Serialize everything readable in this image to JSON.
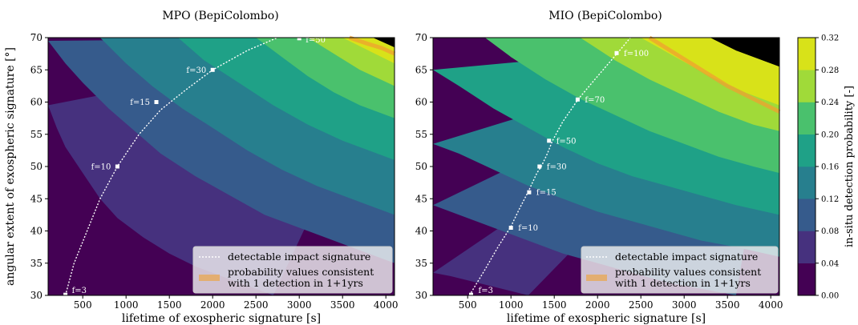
{
  "chart_data": [
    {
      "type": "contour",
      "title": "MPO (BepiColombo)",
      "xlabel": "lifetime of exospheric signature [s]",
      "ylabel": "angular extent of exospheric signature [°]",
      "xlim": [
        100,
        4100
      ],
      "ylim": [
        30,
        70
      ],
      "xticks": [
        "500",
        "1000",
        "1500",
        "2000",
        "2500",
        "3000",
        "3500",
        "4000"
      ],
      "yticks": [
        "30",
        "35",
        "40",
        "45",
        "50",
        "55",
        "60",
        "65",
        "70"
      ],
      "boundaries": [
        [
          [
            100,
            59.5
          ],
          [
            200,
            56
          ],
          [
            300,
            53
          ],
          [
            500,
            49
          ],
          [
            700,
            45
          ],
          [
            900,
            42
          ],
          [
            1200,
            39
          ],
          [
            1500,
            36.5
          ],
          [
            1800,
            34.5
          ],
          [
            2100,
            33
          ],
          [
            2400,
            31.5
          ],
          [
            2700,
            30
          ]
        ],
        [
          [
            100,
            69.5
          ],
          [
            300,
            66
          ],
          [
            500,
            63
          ],
          [
            800,
            59
          ],
          [
            1100,
            55.5
          ],
          [
            1400,
            52
          ],
          [
            1800,
            48.5
          ],
          [
            2200,
            45.5
          ],
          [
            2600,
            42.5
          ],
          [
            3000,
            40.5
          ],
          [
            3400,
            38.5
          ],
          [
            3800,
            36.5
          ],
          [
            4100,
            35
          ]
        ],
        [
          [
            700,
            70
          ],
          [
            1000,
            66
          ],
          [
            1300,
            62.5
          ],
          [
            1650,
            59
          ],
          [
            2000,
            56
          ],
          [
            2400,
            52.5
          ],
          [
            2800,
            49.5
          ],
          [
            3200,
            47
          ],
          [
            3600,
            45
          ],
          [
            4100,
            42.5
          ]
        ],
        [
          [
            1600,
            70
          ],
          [
            1900,
            66.5
          ],
          [
            2300,
            63
          ],
          [
            2700,
            59.5
          ],
          [
            3100,
            56.5
          ],
          [
            3500,
            54
          ],
          [
            4100,
            51
          ]
        ],
        [
          [
            2500,
            70
          ],
          [
            2800,
            67
          ],
          [
            3100,
            64
          ],
          [
            3400,
            61.5
          ],
          [
            3700,
            59.5
          ],
          [
            4100,
            57.5
          ]
        ],
        [
          [
            3100,
            70
          ],
          [
            3400,
            67.5
          ],
          [
            3700,
            65
          ],
          [
            4100,
            62.5
          ]
        ],
        [
          [
            3500,
            70
          ],
          [
            3800,
            68
          ],
          [
            4100,
            66
          ]
        ],
        [
          [
            3850,
            70
          ],
          [
            4100,
            68.5
          ]
        ]
      ],
      "consistent_band": [
        [
          3580,
          70
        ],
        [
          3800,
          69
        ],
        [
          3950,
          68.4
        ],
        [
          4100,
          67.5
        ]
      ],
      "detectable_curve": [
        [
          300,
          30
        ],
        [
          400,
          35
        ],
        [
          550,
          40
        ],
        [
          700,
          45
        ],
        [
          900,
          50
        ],
        [
          1150,
          55
        ],
        [
          1400,
          58.8
        ],
        [
          1700,
          62
        ],
        [
          2000,
          65
        ],
        [
          2400,
          68
        ],
        [
          2750,
          70
        ]
      ],
      "markers": [
        {
          "label": "f=3",
          "x": 300,
          "y": 30.1
        },
        {
          "label": "f=10",
          "x": 900,
          "y": 50
        },
        {
          "label": "f=15",
          "x": 1350,
          "y": 60
        },
        {
          "label": "f=30",
          "x": 2000,
          "y": 65
        },
        {
          "label": "f=50",
          "x": 3000,
          "y": 69.9
        }
      ]
    },
    {
      "type": "contour",
      "title": "MIO (BepiColombo)",
      "xlabel": "lifetime of exospheric signature [s]",
      "ylabel": "",
      "xlim": [
        100,
        4100
      ],
      "ylim": [
        30,
        70
      ],
      "xticks": [
        "500",
        "1000",
        "1500",
        "2000",
        "2500",
        "3000",
        "3500",
        "4000"
      ],
      "yticks": [
        "30",
        "35",
        "40",
        "45",
        "50",
        "55",
        "60",
        "65",
        "70"
      ],
      "boundaries": [
        [
          [
            100,
            33.5
          ],
          [
            300,
            33
          ],
          [
            600,
            32
          ],
          [
            900,
            31
          ],
          [
            1200,
            30
          ]
        ],
        [
          [
            100,
            44
          ],
          [
            400,
            42.5
          ],
          [
            800,
            40.5
          ],
          [
            1200,
            38.5
          ],
          [
            1600,
            36.5
          ],
          [
            2000,
            35
          ],
          [
            2400,
            33.5
          ],
          [
            2800,
            32
          ],
          [
            3200,
            31
          ],
          [
            3600,
            30
          ]
        ],
        [
          [
            100,
            53.5
          ],
          [
            400,
            52
          ],
          [
            800,
            49.5
          ],
          [
            1200,
            47
          ],
          [
            1600,
            45
          ],
          [
            2000,
            43
          ],
          [
            2400,
            41.5
          ],
          [
            2800,
            40
          ],
          [
            3200,
            38.5
          ],
          [
            3600,
            37.5
          ],
          [
            4100,
            36
          ]
        ],
        [
          [
            100,
            65
          ],
          [
            400,
            62.5
          ],
          [
            800,
            59
          ],
          [
            1200,
            56
          ],
          [
            1600,
            53
          ],
          [
            2000,
            50.5
          ],
          [
            2400,
            48.5
          ],
          [
            2800,
            47
          ],
          [
            3200,
            45.5
          ],
          [
            3600,
            44
          ],
          [
            4100,
            42.5
          ]
        ],
        [
          [
            700,
            70
          ],
          [
            1000,
            67
          ],
          [
            1400,
            63.5
          ],
          [
            1800,
            60.5
          ],
          [
            2200,
            58
          ],
          [
            2600,
            55.5
          ],
          [
            3000,
            53.5
          ],
          [
            3400,
            51.5
          ],
          [
            3800,
            50
          ],
          [
            4100,
            49
          ]
        ],
        [
          [
            1800,
            70
          ],
          [
            2200,
            66.5
          ],
          [
            2600,
            63.5
          ],
          [
            3000,
            61
          ],
          [
            3400,
            58.5
          ],
          [
            3800,
            56.5
          ],
          [
            4100,
            55.5
          ]
        ],
        [
          [
            2500,
            70
          ],
          [
            2900,
            67
          ],
          [
            3300,
            64
          ],
          [
            3700,
            61.5
          ],
          [
            4100,
            59.5
          ]
        ],
        [
          [
            3300,
            70
          ],
          [
            3600,
            68
          ],
          [
            4100,
            65.5
          ]
        ]
      ],
      "consistent_band": [
        [
          2600,
          70
        ],
        [
          2900,
          67.5
        ],
        [
          3200,
          65
        ],
        [
          3500,
          62.5
        ],
        [
          3800,
          60.5
        ],
        [
          4100,
          58.5
        ]
      ],
      "detectable_curve": [
        [
          520,
          30
        ],
        [
          700,
          34
        ],
        [
          850,
          37.5
        ],
        [
          1000,
          40.7
        ],
        [
          1100,
          43.5
        ],
        [
          1200,
          46.1
        ],
        [
          1300,
          49
        ],
        [
          1350,
          50
        ],
        [
          1420,
          52
        ],
        [
          1480,
          54
        ],
        [
          1600,
          57
        ],
        [
          1780,
          60.5
        ],
        [
          2000,
          64
        ],
        [
          2230,
          67.6
        ],
        [
          2380,
          70
        ]
      ],
      "markers": [
        {
          "label": "f=3",
          "x": 540,
          "y": 30.1
        },
        {
          "label": "f=10",
          "x": 1000,
          "y": 40.5
        },
        {
          "label": "f=15",
          "x": 1210,
          "y": 46
        },
        {
          "label": "f=30",
          "x": 1330,
          "y": 50
        },
        {
          "label": "f=50",
          "x": 1440,
          "y": 54
        },
        {
          "label": "f=70",
          "x": 1770,
          "y": 60.4
        },
        {
          "label": "f=100",
          "x": 2220,
          "y": 67.6
        }
      ]
    }
  ],
  "colors": [
    "#440154",
    "#46317e",
    "#365b8c",
    "#277f8e",
    "#1fa187",
    "#4ac16d",
    "#a0da39",
    "#d8e219"
  ],
  "band_color": "#f0a030",
  "legend": {
    "line_label": "detectable impact signature",
    "band_label_line1": "probability values consistent",
    "band_label_line2": "with 1 detection in 1+1yrs"
  },
  "colorbar": {
    "label": "in-situ detection probability [-]",
    "ticks": [
      "0.00",
      "0.04",
      "0.08",
      "0.12",
      "0.16",
      "0.20",
      "0.24",
      "0.28",
      "0.32"
    ]
  }
}
